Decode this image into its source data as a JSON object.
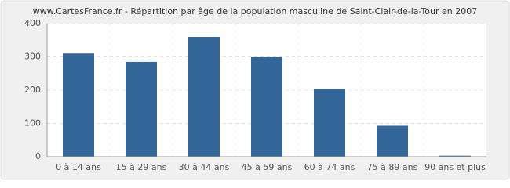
{
  "chart_data": {
    "type": "bar",
    "title": "www.CartesFrance.fr - Répartition par âge de la population masculine de Saint-Clair-de-la-Tour en 2007",
    "categories": [
      "0 à 14 ans",
      "15 à 29 ans",
      "30 à 44 ans",
      "45 à 59 ans",
      "60 à 74 ans",
      "75 à 89 ans",
      "90 ans et plus"
    ],
    "values": [
      310,
      285,
      360,
      299,
      204,
      93,
      3
    ],
    "color": "#336699",
    "ylim": [
      0,
      400
    ],
    "yticks": [
      0,
      100,
      200,
      300,
      400
    ],
    "grid": true
  }
}
